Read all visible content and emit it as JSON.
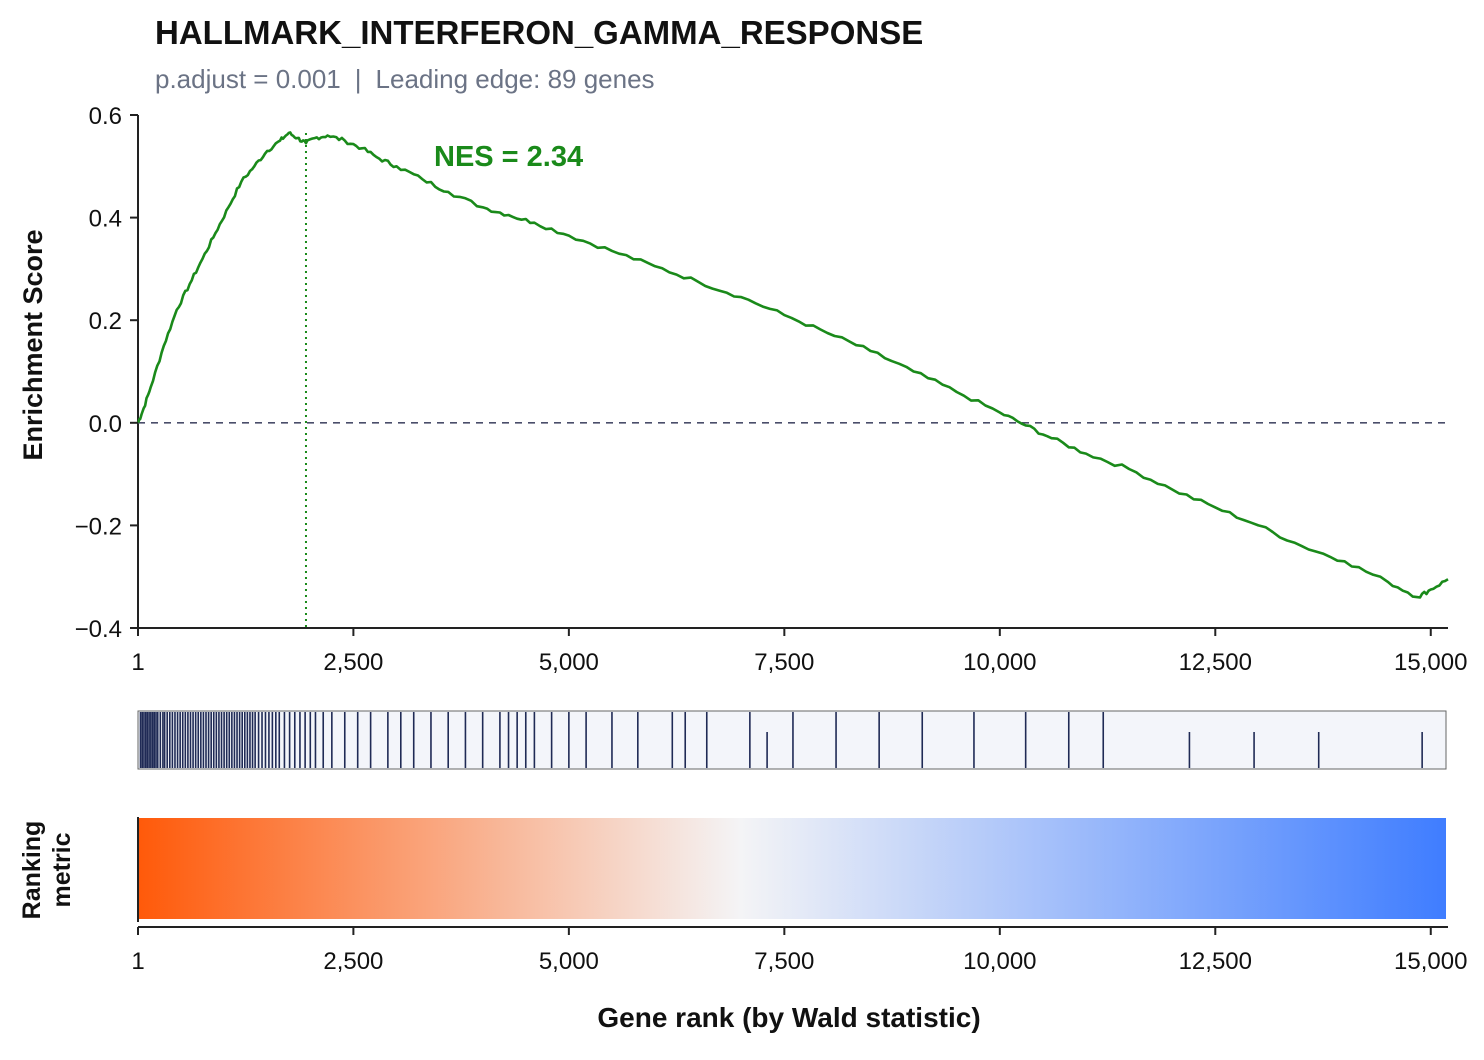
{
  "header": {
    "title": "HALLMARK_INTERFERON_GAMMA_RESPONSE",
    "padj_text": "p.adjust = 0.001",
    "separator": "|",
    "leading_edge_text": "Leading edge: 89 genes"
  },
  "colors": {
    "es_line": "#1a8a1a",
    "zero_line": "#4a4e6a",
    "hits": "#1f2a55",
    "hits_bg": "#f3f5fa",
    "metric_pos": "#ff5a0a",
    "metric_mid": "#f4f4f6",
    "metric_neg": "#3f7dff"
  },
  "chart_data": {
    "type": "line",
    "annotation": "NES = 2.34",
    "ylabel": "Enrichment Score",
    "metric_label": [
      "Ranking",
      "metric"
    ],
    "xlabel": "Gene rank (by Wald statistic)",
    "xlim": [
      1,
      15200
    ],
    "ylim": [
      -0.4,
      0.6
    ],
    "xticks": [
      1,
      2500,
      5000,
      7500,
      10000,
      12500,
      15000
    ],
    "xtick_labels": [
      "1",
      "2,500",
      "5,000",
      "7,500",
      "10,000",
      "12,500",
      "15,000"
    ],
    "yticks": [
      -0.4,
      -0.2,
      0.0,
      0.2,
      0.4,
      0.6
    ],
    "ytick_labels": [
      "−0.4",
      "−0.2",
      "0.0",
      "0.2",
      "0.4",
      "0.6"
    ],
    "leading_edge_rank": 1950,
    "peak_es": 0.565,
    "es_curve": {
      "x": [
        1,
        50,
        150,
        300,
        450,
        600,
        750,
        900,
        1050,
        1200,
        1350,
        1500,
        1650,
        1750,
        1850,
        1950,
        2050,
        2200,
        2400,
        2600,
        2800,
        3000,
        3300,
        3600,
        4000,
        4300,
        4600,
        5000,
        5500,
        6000,
        6500,
        7000,
        7500,
        8000,
        8500,
        9000,
        9500,
        10000,
        10300,
        10600,
        11000,
        11500,
        12000,
        12500,
        13000,
        13500,
        14000,
        14500,
        14850,
        15000,
        15200
      ],
      "y": [
        0.0,
        0.02,
        0.07,
        0.15,
        0.22,
        0.27,
        0.32,
        0.37,
        0.42,
        0.47,
        0.5,
        0.53,
        0.55,
        0.565,
        0.555,
        0.545,
        0.555,
        0.56,
        0.55,
        0.535,
        0.515,
        0.5,
        0.475,
        0.45,
        0.42,
        0.405,
        0.39,
        0.365,
        0.335,
        0.305,
        0.275,
        0.245,
        0.21,
        0.175,
        0.14,
        0.1,
        0.06,
        0.02,
        -0.005,
        -0.03,
        -0.06,
        -0.09,
        -0.13,
        -0.165,
        -0.2,
        -0.24,
        -0.27,
        -0.31,
        -0.34,
        -0.325,
        -0.305
      ]
    },
    "hit_ranks": [
      30,
      50,
      70,
      90,
      110,
      130,
      150,
      170,
      190,
      210,
      230,
      260,
      290,
      310,
      340,
      370,
      400,
      430,
      460,
      490,
      520,
      550,
      580,
      610,
      640,
      670,
      700,
      730,
      760,
      790,
      820,
      850,
      880,
      910,
      940,
      970,
      1000,
      1030,
      1060,
      1090,
      1120,
      1150,
      1180,
      1210,
      1240,
      1270,
      1300,
      1330,
      1360,
      1400,
      1440,
      1480,
      1520,
      1560,
      1600,
      1640,
      1700,
      1760,
      1820,
      1880,
      1940,
      2000,
      2060,
      2150,
      2250,
      2400,
      2550,
      2700,
      2900,
      3050,
      3200,
      3400,
      3600,
      3800,
      4000,
      4200,
      4300,
      4400,
      4500,
      4600,
      4800,
      5000,
      5200,
      5500,
      5800,
      6200,
      6350,
      6600,
      7100
    ],
    "hit_ranks_short": [
      7300,
      12200,
      12950,
      13700,
      14900
    ],
    "sparse_hit_ranks": [
      7600,
      8100,
      8600,
      9100,
      9700,
      10300,
      10800,
      11200
    ]
  }
}
